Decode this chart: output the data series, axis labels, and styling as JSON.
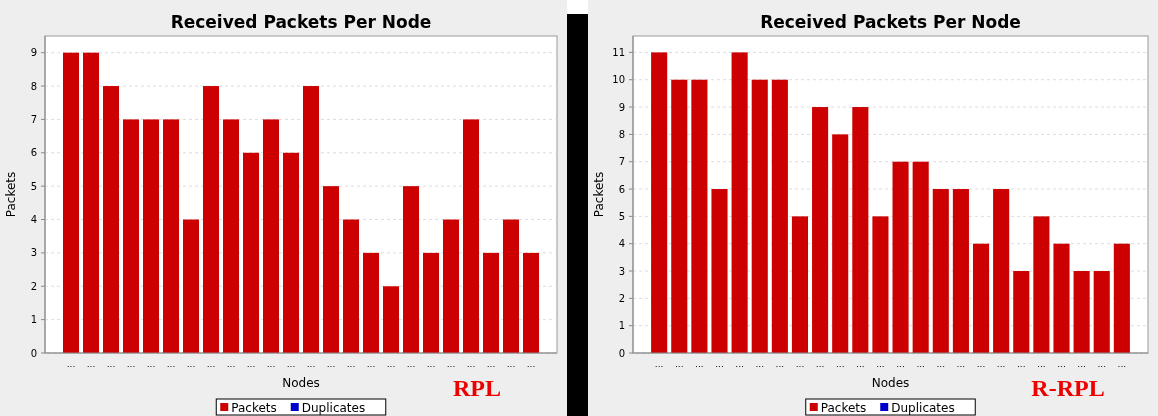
{
  "chart_data": [
    {
      "type": "bar",
      "title": "Received Packets Per Node",
      "xlabel": "Nodes",
      "ylabel": "Packets",
      "categories": [
        "...",
        "...",
        "...",
        "...",
        "...",
        "...",
        "...",
        "...",
        "...",
        "...",
        "...",
        "...",
        "...",
        "...",
        "...",
        "...",
        "...",
        "...",
        "...",
        "...",
        "...",
        "...",
        "...",
        "..."
      ],
      "series": [
        {
          "name": "Packets",
          "color": "#cc0000",
          "values": [
            9,
            9,
            8,
            7,
            7,
            7,
            4,
            8,
            7,
            6,
            7,
            6,
            8,
            5,
            4,
            3,
            2,
            5,
            3,
            4,
            7,
            3,
            4,
            3
          ]
        },
        {
          "name": "Duplicates",
          "color": "#0000cc",
          "values": [
            null,
            null,
            null,
            null,
            null,
            null,
            null,
            null,
            null,
            null,
            null,
            null,
            null,
            null,
            null,
            null,
            null,
            null,
            null,
            null,
            null,
            null,
            null,
            null
          ]
        }
      ],
      "ylim": [
        0,
        9.5
      ],
      "yticks": [
        0,
        1,
        2,
        3,
        4,
        5,
        6,
        7,
        8,
        9
      ],
      "grid": "y",
      "legend": "bottom",
      "annotations": [
        "RPL"
      ]
    },
    {
      "type": "bar",
      "title": "Received Packets Per Node",
      "xlabel": "Nodes",
      "ylabel": "Packets",
      "categories": [
        "...",
        "...",
        "...",
        "...",
        "...",
        "...",
        "...",
        "...",
        "...",
        "...",
        "...",
        "...",
        "...",
        "...",
        "...",
        "...",
        "...",
        "...",
        "...",
        "...",
        "...",
        "...",
        "...",
        "..."
      ],
      "series": [
        {
          "name": "Packets",
          "color": "#cc0000",
          "values": [
            11,
            10,
            10,
            6,
            11,
            10,
            10,
            5,
            9,
            8,
            9,
            5,
            7,
            7,
            6,
            6,
            4,
            6,
            3,
            5,
            4,
            3,
            3,
            4
          ]
        },
        {
          "name": "Duplicates",
          "color": "#0000cc",
          "values": [
            null,
            null,
            null,
            null,
            null,
            null,
            null,
            null,
            null,
            null,
            null,
            null,
            null,
            null,
            null,
            null,
            null,
            null,
            null,
            null,
            null,
            null,
            null,
            null
          ]
        }
      ],
      "ylim": [
        0,
        11.6
      ],
      "yticks": [
        0,
        1,
        2,
        3,
        4,
        5,
        6,
        7,
        8,
        9,
        10,
        11
      ],
      "grid": "y",
      "legend": "bottom",
      "annotations": [
        "R-RPL"
      ]
    }
  ]
}
